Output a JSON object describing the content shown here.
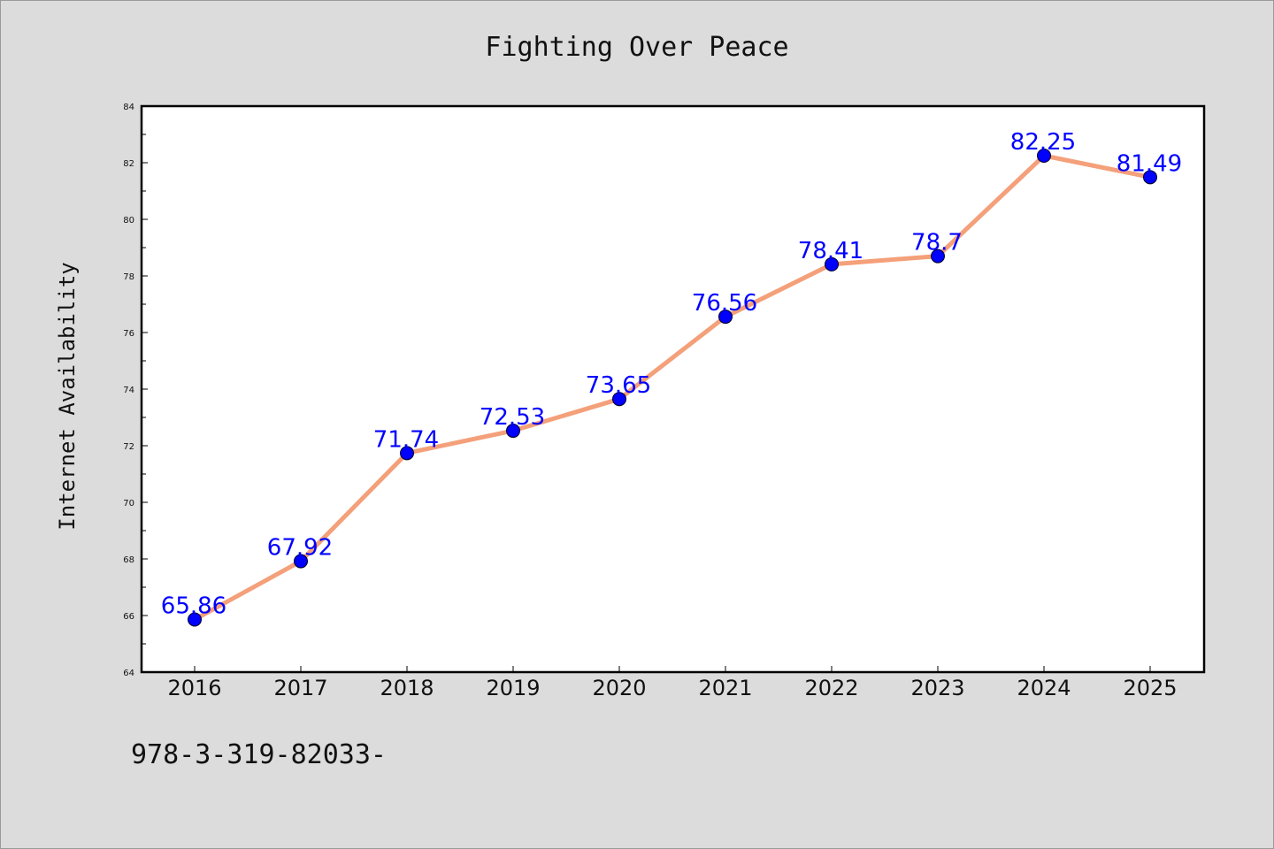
{
  "chart_data": {
    "type": "line",
    "title": "Fighting Over Peace",
    "xlabel": "",
    "ylabel": "Internet Availability",
    "categories": [
      "2016",
      "2017",
      "2018",
      "2019",
      "2020",
      "2021",
      "2022",
      "2023",
      "2024",
      "2025"
    ],
    "values": [
      65.86,
      67.92,
      71.74,
      72.53,
      73.65,
      76.56,
      78.41,
      78.7,
      82.25,
      81.49
    ],
    "data_labels": [
      "65.86",
      "67.92",
      "71.74",
      "72.53",
      "73.65",
      "76.56",
      "78.41",
      "78.7",
      "82.25",
      "81.49"
    ],
    "ylim": [
      64,
      84
    ],
    "yticks": [
      "64",
      "66",
      "68",
      "70",
      "72",
      "74",
      "76",
      "78",
      "80",
      "82",
      "84"
    ],
    "grid": false,
    "legend": "none",
    "colors": {
      "line": "#f4a07a",
      "marker": "#0000ff",
      "data_label": "#0000ff",
      "background": "#dcdcdc",
      "plot_background": "#ffffff"
    }
  },
  "footnote": "978-3-319-82033-"
}
